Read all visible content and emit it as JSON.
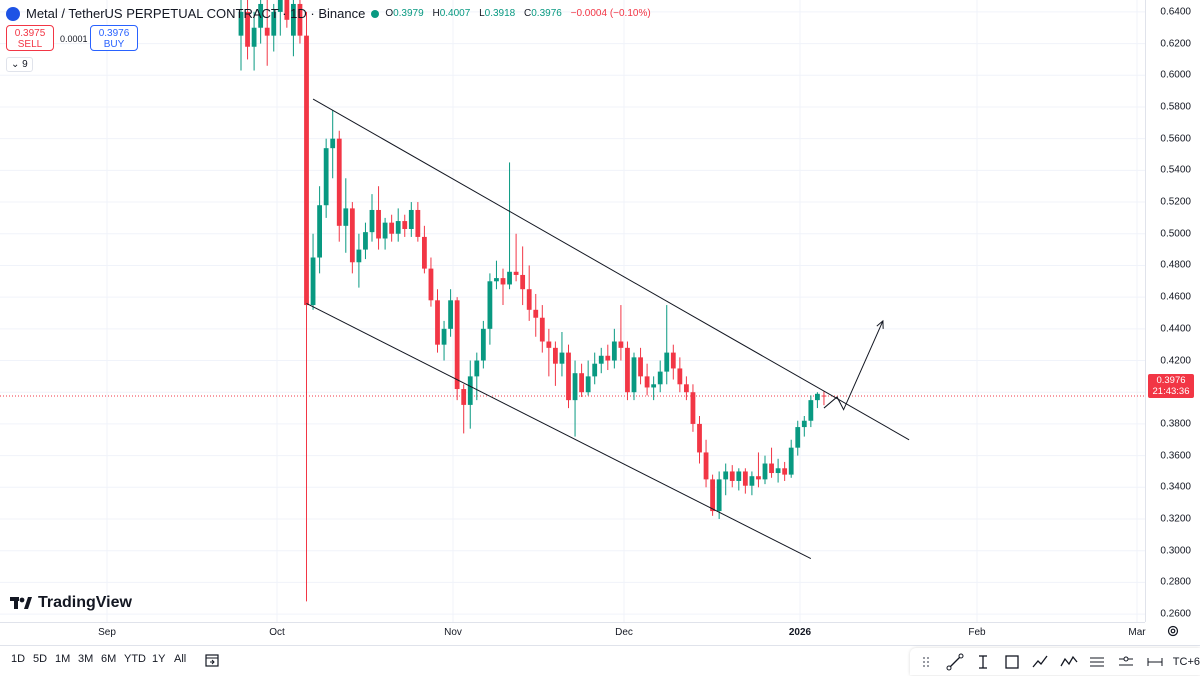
{
  "legend": {
    "title": "Metal / TetherUS PERPETUAL CONTRACT · 1D · Binance",
    "o_label": "O",
    "o_value": "0.3979",
    "h_label": "H",
    "h_value": "0.4007",
    "l_label": "L",
    "l_value": "0.3918",
    "c_label": "C",
    "c_value": "0.3976",
    "change": "−0.0004 (−0.10%)"
  },
  "trade": {
    "sell_price": "0.3975",
    "sell_label": "SELL",
    "spread": "0.0001",
    "buy_price": "0.3976",
    "buy_label": "BUY"
  },
  "indicator_toggle": "9",
  "logo_text": "TradingView",
  "current_price": {
    "value": "0.3976",
    "countdown": "21:43:36"
  },
  "price_axis": [
    "0.6400",
    "0.6200",
    "0.6000",
    "0.5800",
    "0.5600",
    "0.5400",
    "0.5200",
    "0.5000",
    "0.4800",
    "0.4600",
    "0.4400",
    "0.4200",
    "0.3800",
    "0.3600",
    "0.3400",
    "0.3200",
    "0.3000",
    "0.2800",
    "0.2600"
  ],
  "time_axis": [
    "Sep",
    "Oct",
    "Nov",
    "Dec",
    "2026",
    "Feb",
    "Mar"
  ],
  "ranges": [
    "1D",
    "5D",
    "1M",
    "3M",
    "6M",
    "YTD",
    "1Y",
    "All"
  ],
  "tools_tail": "TC+6",
  "colors": {
    "up": "#089981",
    "down": "#f23645",
    "line": "#131722"
  },
  "chart_data": {
    "type": "candlestick",
    "symbol": "Metal / TetherUS PERPETUAL CONTRACT",
    "interval": "1D",
    "ylim": [
      0.255,
      0.6475
    ],
    "candles": [
      {
        "o": 0.625,
        "h": 0.65,
        "l": 0.603,
        "c": 0.64
      },
      {
        "o": 0.64,
        "h": 0.65,
        "l": 0.61,
        "c": 0.618
      },
      {
        "o": 0.618,
        "h": 0.64,
        "l": 0.603,
        "c": 0.63
      },
      {
        "o": 0.63,
        "h": 0.65,
        "l": 0.62,
        "c": 0.645
      },
      {
        "o": 0.63,
        "h": 0.648,
        "l": 0.606,
        "c": 0.625
      },
      {
        "o": 0.625,
        "h": 0.645,
        "l": 0.615,
        "c": 0.64
      },
      {
        "o": 0.64,
        "h": 0.65,
        "l": 0.625,
        "c": 0.648
      },
      {
        "o": 0.648,
        "h": 0.65,
        "l": 0.63,
        "c": 0.635
      },
      {
        "o": 0.625,
        "h": 0.65,
        "l": 0.612,
        "c": 0.645
      },
      {
        "o": 0.645,
        "h": 0.65,
        "l": 0.62,
        "c": 0.625
      },
      {
        "o": 0.625,
        "h": 0.64,
        "l": 0.268,
        "c": 0.455
      },
      {
        "o": 0.455,
        "h": 0.5,
        "l": 0.452,
        "c": 0.485
      },
      {
        "o": 0.485,
        "h": 0.53,
        "l": 0.475,
        "c": 0.518
      },
      {
        "o": 0.518,
        "h": 0.56,
        "l": 0.51,
        "c": 0.554
      },
      {
        "o": 0.554,
        "h": 0.578,
        "l": 0.535,
        "c": 0.56
      },
      {
        "o": 0.56,
        "h": 0.565,
        "l": 0.495,
        "c": 0.505
      },
      {
        "o": 0.505,
        "h": 0.535,
        "l": 0.488,
        "c": 0.516
      },
      {
        "o": 0.516,
        "h": 0.52,
        "l": 0.475,
        "c": 0.482
      },
      {
        "o": 0.482,
        "h": 0.5,
        "l": 0.466,
        "c": 0.49
      },
      {
        "o": 0.49,
        "h": 0.507,
        "l": 0.484,
        "c": 0.501
      },
      {
        "o": 0.501,
        "h": 0.525,
        "l": 0.495,
        "c": 0.515
      },
      {
        "o": 0.515,
        "h": 0.53,
        "l": 0.49,
        "c": 0.497
      },
      {
        "o": 0.497,
        "h": 0.51,
        "l": 0.49,
        "c": 0.507
      },
      {
        "o": 0.507,
        "h": 0.512,
        "l": 0.495,
        "c": 0.5
      },
      {
        "o": 0.5,
        "h": 0.516,
        "l": 0.495,
        "c": 0.508
      },
      {
        "o": 0.508,
        "h": 0.512,
        "l": 0.498,
        "c": 0.503
      },
      {
        "o": 0.503,
        "h": 0.52,
        "l": 0.498,
        "c": 0.515
      },
      {
        "o": 0.515,
        "h": 0.52,
        "l": 0.495,
        "c": 0.498
      },
      {
        "o": 0.498,
        "h": 0.505,
        "l": 0.475,
        "c": 0.478
      },
      {
        "o": 0.478,
        "h": 0.485,
        "l": 0.454,
        "c": 0.458
      },
      {
        "o": 0.458,
        "h": 0.465,
        "l": 0.425,
        "c": 0.43
      },
      {
        "o": 0.43,
        "h": 0.445,
        "l": 0.42,
        "c": 0.44
      },
      {
        "o": 0.44,
        "h": 0.465,
        "l": 0.435,
        "c": 0.458
      },
      {
        "o": 0.458,
        "h": 0.46,
        "l": 0.395,
        "c": 0.402
      },
      {
        "o": 0.402,
        "h": 0.405,
        "l": 0.374,
        "c": 0.392
      },
      {
        "o": 0.392,
        "h": 0.42,
        "l": 0.377,
        "c": 0.41
      },
      {
        "o": 0.41,
        "h": 0.425,
        "l": 0.395,
        "c": 0.42
      },
      {
        "o": 0.42,
        "h": 0.445,
        "l": 0.415,
        "c": 0.44
      },
      {
        "o": 0.44,
        "h": 0.475,
        "l": 0.43,
        "c": 0.47
      },
      {
        "o": 0.47,
        "h": 0.483,
        "l": 0.465,
        "c": 0.472
      },
      {
        "o": 0.472,
        "h": 0.478,
        "l": 0.455,
        "c": 0.468
      },
      {
        "o": 0.468,
        "h": 0.545,
        "l": 0.465,
        "c": 0.476
      },
      {
        "o": 0.476,
        "h": 0.5,
        "l": 0.47,
        "c": 0.474
      },
      {
        "o": 0.474,
        "h": 0.492,
        "l": 0.455,
        "c": 0.465
      },
      {
        "o": 0.465,
        "h": 0.48,
        "l": 0.445,
        "c": 0.452
      },
      {
        "o": 0.452,
        "h": 0.462,
        "l": 0.435,
        "c": 0.447
      },
      {
        "o": 0.447,
        "h": 0.455,
        "l": 0.425,
        "c": 0.432
      },
      {
        "o": 0.432,
        "h": 0.44,
        "l": 0.41,
        "c": 0.428
      },
      {
        "o": 0.428,
        "h": 0.432,
        "l": 0.404,
        "c": 0.418
      },
      {
        "o": 0.418,
        "h": 0.438,
        "l": 0.41,
        "c": 0.425
      },
      {
        "o": 0.425,
        "h": 0.43,
        "l": 0.39,
        "c": 0.395
      },
      {
        "o": 0.395,
        "h": 0.42,
        "l": 0.372,
        "c": 0.412
      },
      {
        "o": 0.412,
        "h": 0.418,
        "l": 0.397,
        "c": 0.4
      },
      {
        "o": 0.4,
        "h": 0.42,
        "l": 0.398,
        "c": 0.41
      },
      {
        "o": 0.41,
        "h": 0.425,
        "l": 0.405,
        "c": 0.418
      },
      {
        "o": 0.418,
        "h": 0.428,
        "l": 0.412,
        "c": 0.423
      },
      {
        "o": 0.423,
        "h": 0.43,
        "l": 0.414,
        "c": 0.42
      },
      {
        "o": 0.42,
        "h": 0.44,
        "l": 0.415,
        "c": 0.432
      },
      {
        "o": 0.432,
        "h": 0.455,
        "l": 0.42,
        "c": 0.428
      },
      {
        "o": 0.428,
        "h": 0.432,
        "l": 0.395,
        "c": 0.4
      },
      {
        "o": 0.4,
        "h": 0.425,
        "l": 0.395,
        "c": 0.422
      },
      {
        "o": 0.422,
        "h": 0.428,
        "l": 0.405,
        "c": 0.41
      },
      {
        "o": 0.41,
        "h": 0.418,
        "l": 0.398,
        "c": 0.403
      },
      {
        "o": 0.403,
        "h": 0.41,
        "l": 0.395,
        "c": 0.405
      },
      {
        "o": 0.405,
        "h": 0.42,
        "l": 0.4,
        "c": 0.413
      },
      {
        "o": 0.413,
        "h": 0.455,
        "l": 0.405,
        "c": 0.425
      },
      {
        "o": 0.425,
        "h": 0.43,
        "l": 0.408,
        "c": 0.415
      },
      {
        "o": 0.415,
        "h": 0.422,
        "l": 0.4,
        "c": 0.405
      },
      {
        "o": 0.405,
        "h": 0.41,
        "l": 0.395,
        "c": 0.4
      },
      {
        "o": 0.4,
        "h": 0.405,
        "l": 0.375,
        "c": 0.38
      },
      {
        "o": 0.38,
        "h": 0.385,
        "l": 0.355,
        "c": 0.362
      },
      {
        "o": 0.362,
        "h": 0.37,
        "l": 0.34,
        "c": 0.345
      },
      {
        "o": 0.345,
        "h": 0.348,
        "l": 0.322,
        "c": 0.325
      },
      {
        "o": 0.325,
        "h": 0.35,
        "l": 0.32,
        "c": 0.345
      },
      {
        "o": 0.345,
        "h": 0.355,
        "l": 0.335,
        "c": 0.35
      },
      {
        "o": 0.35,
        "h": 0.354,
        "l": 0.34,
        "c": 0.344
      },
      {
        "o": 0.344,
        "h": 0.352,
        "l": 0.338,
        "c": 0.35
      },
      {
        "o": 0.35,
        "h": 0.352,
        "l": 0.336,
        "c": 0.341
      },
      {
        "o": 0.341,
        "h": 0.35,
        "l": 0.335,
        "c": 0.347
      },
      {
        "o": 0.347,
        "h": 0.362,
        "l": 0.34,
        "c": 0.345
      },
      {
        "o": 0.345,
        "h": 0.36,
        "l": 0.342,
        "c": 0.355
      },
      {
        "o": 0.355,
        "h": 0.365,
        "l": 0.346,
        "c": 0.349
      },
      {
        "o": 0.349,
        "h": 0.358,
        "l": 0.343,
        "c": 0.352
      },
      {
        "o": 0.352,
        "h": 0.356,
        "l": 0.344,
        "c": 0.348
      },
      {
        "o": 0.348,
        "h": 0.37,
        "l": 0.346,
        "c": 0.365
      },
      {
        "o": 0.365,
        "h": 0.382,
        "l": 0.36,
        "c": 0.378
      },
      {
        "o": 0.378,
        "h": 0.385,
        "l": 0.372,
        "c": 0.382
      },
      {
        "o": 0.382,
        "h": 0.398,
        "l": 0.378,
        "c": 0.395
      },
      {
        "o": 0.395,
        "h": 0.4,
        "l": 0.39,
        "c": 0.399
      },
      {
        "o": 0.3979,
        "h": 0.4007,
        "l": 0.3918,
        "c": 0.3976
      }
    ],
    "channel_upper": [
      {
        "i": 11,
        "y": 0.585
      },
      {
        "i": 102,
        "y": 0.37
      }
    ],
    "channel_lower": [
      {
        "i": 10,
        "y": 0.456
      },
      {
        "i": 87,
        "y": 0.295
      }
    ],
    "projection_path": [
      {
        "i": 89,
        "y": 0.39
      },
      {
        "i": 91,
        "y": 0.397
      },
      {
        "i": 92,
        "y": 0.389
      },
      {
        "i": 98,
        "y": 0.445
      }
    ]
  }
}
